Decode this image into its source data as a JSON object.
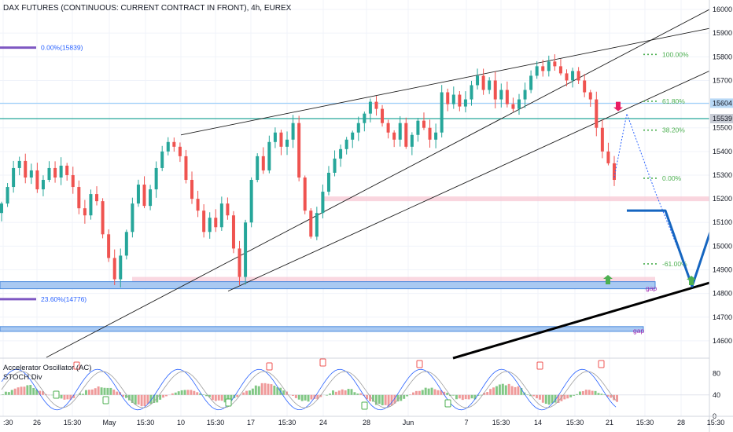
{
  "header": {
    "title": "DAX FUTURES (CONTINUOUS: CURRENT CONTRACT IN FRONT), 4h, EUREX"
  },
  "indicator": {
    "line1": "Accelerator Oscillator (AC)",
    "line2": "STOCH Div"
  },
  "price_axis": {
    "ticks": [
      "16000",
      "15900",
      "15800",
      "15700",
      "15600",
      "15500",
      "15400",
      "15300",
      "15200",
      "15100",
      "15000",
      "14900",
      "14800",
      "14700",
      "14600"
    ],
    "tags": [
      {
        "label": "15604",
        "value": 15604,
        "color": "#b8d8f5"
      },
      {
        "label": "15539",
        "value": 15539,
        "color": "#c9cdd6"
      }
    ]
  },
  "osc_axis": {
    "ticks": [
      "80",
      "40",
      "0"
    ]
  },
  "time_axis": {
    "ticks": [
      ":30",
      "26",
      "15:30",
      "May",
      "15:30",
      "10",
      "15:30",
      "17",
      "15:30",
      "24",
      "28",
      "Jun",
      "7",
      "15:30",
      "14",
      "15:30",
      "21",
      "15:30",
      "28",
      "15:30"
    ]
  },
  "annotations": {
    "fib_left_top": "0.00%(15839)",
    "fib_left_bottom": "23.60%(14776)",
    "fib_levels": [
      "100.00%",
      "61.80%",
      "38.20%",
      "0.00%",
      "-61.00%"
    ],
    "gap_labels": [
      "gap",
      "gap"
    ]
  },
  "chart_data": {
    "type": "candlestick",
    "title": "DAX FUTURES (CONTINUOUS: CURRENT CONTRACT IN FRONT), 4h, EUREX",
    "ylim": [
      14530,
      16040
    ],
    "y_ticks": [
      16000,
      15900,
      15800,
      15700,
      15600,
      15500,
      15400,
      15300,
      15200,
      15100,
      15000,
      14900,
      14800,
      14700,
      14600
    ],
    "close_path": [
      15180,
      15250,
      15330,
      15360,
      15290,
      15320,
      15240,
      15280,
      15330,
      15290,
      15340,
      15300,
      15250,
      15160,
      15130,
      15220,
      15190,
      15050,
      14950,
      14860,
      14960,
      15060,
      15180,
      15260,
      15170,
      15240,
      15330,
      15400,
      15440,
      15420,
      15380,
      15280,
      15200,
      15150,
      15060,
      15120,
      15080,
      15180,
      15130,
      14990,
      14870,
      15100,
      15280,
      15380,
      15320,
      15440,
      15480,
      15420,
      15450,
      15520,
      15290,
      15150,
      15040,
      15140,
      15230,
      15310,
      15370,
      15410,
      15450,
      15480,
      15520,
      15560,
      15610,
      15580,
      15520,
      15480,
      15450,
      15520,
      15420,
      15470,
      15530,
      15500,
      15450,
      15480,
      15650,
      15600,
      15640,
      15590,
      15620,
      15680,
      15720,
      15660,
      15700,
      15620,
      15660,
      15600,
      15580,
      15620,
      15660,
      15720,
      15760,
      15740,
      15780,
      15760,
      15730,
      15700,
      15740,
      15700,
      15650,
      15620,
      15500,
      15400,
      15350,
      15280
    ],
    "horizontal_levels": [
      15604,
      15539
    ],
    "support_zones": [
      [
        14820,
        14850
      ],
      [
        14640,
        14660
      ]
    ],
    "resistance_zone": [
      15190,
      15210
    ],
    "fibonacci": {
      "left_labels": [
        {
          "label": "0.00%(15839)",
          "value": 15839
        },
        {
          "label": "23.60%(14776)",
          "value": 14776
        }
      ],
      "right_levels": [
        {
          "label": "100.00%",
          "value": 15810
        },
        {
          "label": "61.80%",
          "value": 15612
        },
        {
          "label": "38.20%",
          "value": 15490
        },
        {
          "label": "0.00%",
          "value": 15287
        },
        {
          "label": "-61.00%",
          "value": 14925
        }
      ]
    },
    "projection_path": [
      15150,
      15150,
      14830,
      15090
    ],
    "markers": [
      {
        "type": "arrow-down",
        "color": "#e91e63",
        "value": 15570
      },
      {
        "type": "arrow-up",
        "color": "#4caf50",
        "value": 14810
      },
      {
        "type": "arrow-up",
        "color": "#4caf50",
        "value": 14800
      }
    ],
    "oscillator": {
      "name": "Accelerator Oscillator (AC)",
      "ylim": [
        0,
        100
      ],
      "y_ticks": [
        80,
        40,
        0
      ]
    }
  }
}
